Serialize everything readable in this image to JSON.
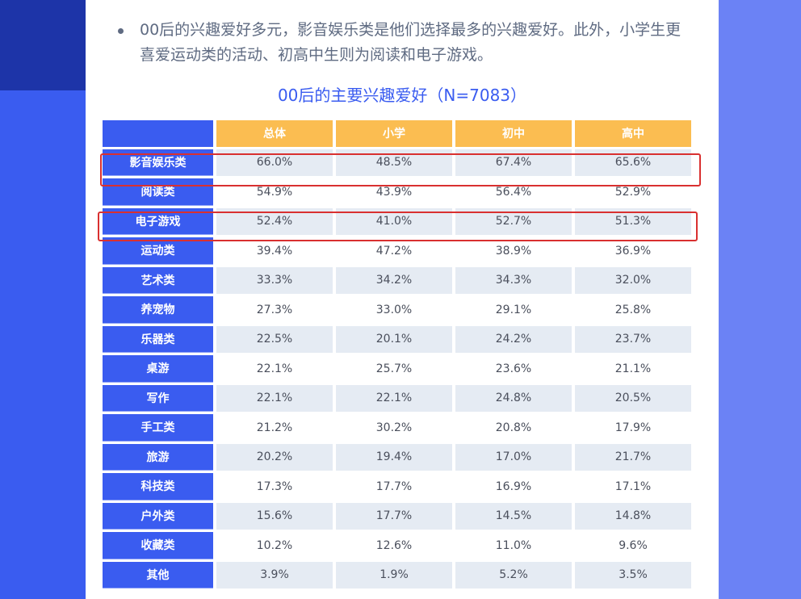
{
  "bullet": "00后的兴趣爱好多元，影音娱乐类是他们选择最多的兴趣爱好。此外，小学生更喜爱运动类的活动、初高中生则为阅读和电子游戏。",
  "table_title": "00后的主要兴趣爱好（N=7083）",
  "columns": [
    "总体",
    "小学",
    "初中",
    "高中"
  ],
  "rows": [
    {
      "label": "影音娱乐类",
      "values": [
        "66.0%",
        "48.5%",
        "67.4%",
        "65.6%"
      ]
    },
    {
      "label": "阅读类",
      "values": [
        "54.9%",
        "43.9%",
        "56.4%",
        "52.9%"
      ]
    },
    {
      "label": "电子游戏",
      "values": [
        "52.4%",
        "41.0%",
        "52.7%",
        "51.3%"
      ]
    },
    {
      "label": "运动类",
      "values": [
        "39.4%",
        "47.2%",
        "38.9%",
        "36.9%"
      ]
    },
    {
      "label": "艺术类",
      "values": [
        "33.3%",
        "34.2%",
        "34.3%",
        "32.0%"
      ]
    },
    {
      "label": "养宠物",
      "values": [
        "27.3%",
        "33.0%",
        "29.1%",
        "25.8%"
      ]
    },
    {
      "label": "乐器类",
      "values": [
        "22.5%",
        "20.1%",
        "24.2%",
        "23.7%"
      ]
    },
    {
      "label": "桌游",
      "values": [
        "22.1%",
        "25.7%",
        "23.6%",
        "21.1%"
      ]
    },
    {
      "label": "写作",
      "values": [
        "22.1%",
        "22.1%",
        "24.8%",
        "20.5%"
      ]
    },
    {
      "label": "手工类",
      "values": [
        "21.2%",
        "30.2%",
        "20.8%",
        "17.9%"
      ]
    },
    {
      "label": "旅游",
      "values": [
        "20.2%",
        "19.4%",
        "17.0%",
        "21.7%"
      ]
    },
    {
      "label": "科技类",
      "values": [
        "17.3%",
        "17.7%",
        "16.9%",
        "17.1%"
      ]
    },
    {
      "label": "户外类",
      "values": [
        "15.6%",
        "17.7%",
        "14.5%",
        "14.8%"
      ]
    },
    {
      "label": "收藏类",
      "values": [
        "10.2%",
        "12.6%",
        "11.0%",
        "9.6%"
      ]
    },
    {
      "label": "其他",
      "values": [
        "3.9%",
        "1.9%",
        "5.2%",
        "3.5%"
      ]
    }
  ],
  "colors": {
    "primary_blue": "#3a5cf0",
    "header_orange": "#fbbd51",
    "highlight_red": "#d93030",
    "row_shade": "#e5ebf3"
  }
}
